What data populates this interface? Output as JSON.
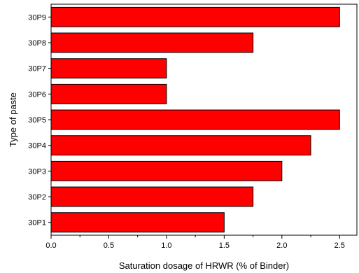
{
  "chart_data": {
    "type": "bar",
    "orientation": "horizontal",
    "title": "",
    "xlabel": "Saturation dosage of HRWR (% of Binder)",
    "ylabel": "Type of paste",
    "categories": [
      "30P9",
      "30P8",
      "30P7",
      "30P6",
      "30P5",
      "30P4",
      "30P3",
      "30P2",
      "30P1"
    ],
    "values": [
      2.5,
      1.75,
      1.0,
      1.0,
      2.5,
      2.25,
      2.0,
      1.75,
      1.5
    ],
    "xlim": [
      0,
      2.65
    ],
    "xticks": [
      "0.0",
      "0.5",
      "1.0",
      "1.5",
      "2.0",
      "2.5"
    ],
    "grid": false,
    "legend": "none",
    "colors": {
      "bar_fill": "#ff0000",
      "bar_stroke": "#000000",
      "axis": "#000000"
    }
  }
}
